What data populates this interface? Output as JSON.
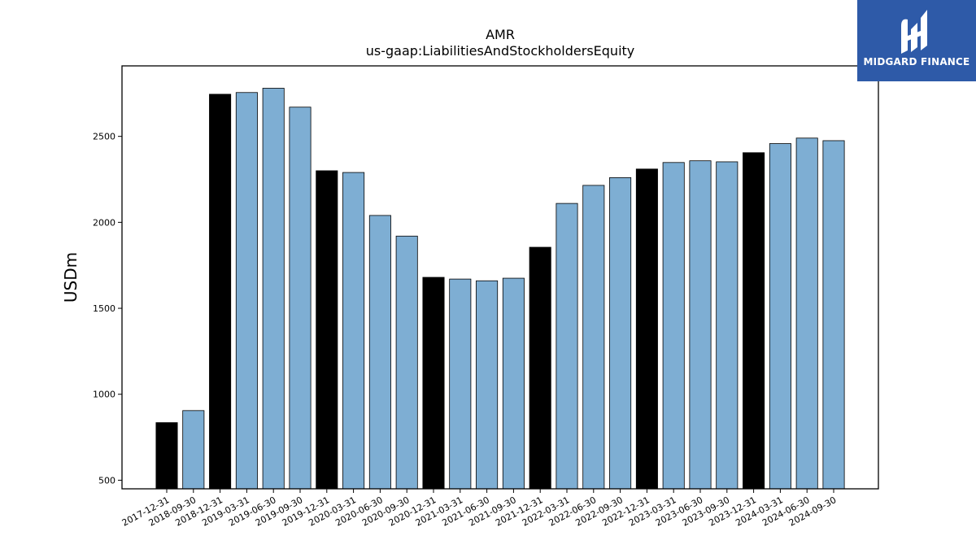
{
  "chart_data": {
    "type": "bar",
    "title": "AMR",
    "subtitle": "us-gaap:LiabilitiesAndStockholdersEquity",
    "xlabel": "",
    "ylabel": "USDm",
    "ylim": [
      450,
      2910
    ],
    "yticks": [
      500,
      1000,
      1500,
      2000,
      2500
    ],
    "grid": false,
    "categories": [
      "2017-12-31",
      "2018-09-30",
      "2018-12-31",
      "2019-03-31",
      "2019-06-30",
      "2019-09-30",
      "2019-12-31",
      "2020-03-31",
      "2020-06-30",
      "2020-09-30",
      "2020-12-31",
      "2021-03-31",
      "2021-06-30",
      "2021-09-30",
      "2021-12-31",
      "2022-03-31",
      "2022-06-30",
      "2022-09-30",
      "2022-12-31",
      "2023-03-31",
      "2023-06-30",
      "2023-09-30",
      "2023-12-31",
      "2024-03-31",
      "2024-06-30",
      "2024-09-30"
    ],
    "values": [
      835,
      905,
      2745,
      2755,
      2780,
      2670,
      2300,
      2290,
      2040,
      1920,
      1680,
      1670,
      1660,
      1675,
      1855,
      2110,
      2215,
      2260,
      2310,
      2348,
      2358,
      2352,
      2405,
      2458,
      2490,
      2475
    ],
    "year_end_color": "#000000",
    "quarter_color": "#7eaed3"
  },
  "logo": {
    "text": "MIDGARD FINANCE",
    "background": "#2e5aa8"
  }
}
